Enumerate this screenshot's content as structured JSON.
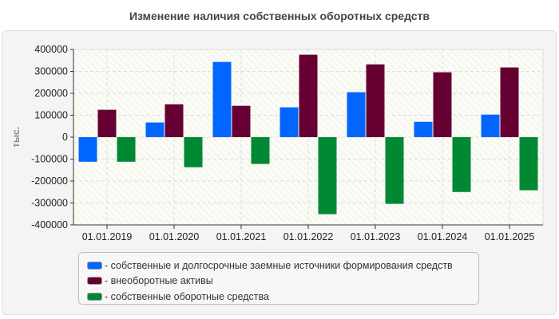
{
  "chart_data": {
    "type": "bar",
    "title": "Изменение наличия собственных оборотных средств",
    "ylabel": "тыс.",
    "xlabel": "",
    "ylim": [
      -400000,
      400000
    ],
    "yticks": [
      "400000",
      "300000",
      "200000",
      "100000",
      "0",
      "-100000",
      "-200000",
      "-300000",
      "-400000"
    ],
    "grid": true,
    "legend_position": "bottom",
    "categories": [
      "01.01.2019",
      "01.01.2020",
      "01.01.2021",
      "01.01.2022",
      "01.01.2023",
      "01.01.2024",
      "01.01.2025"
    ],
    "series": [
      {
        "name": "- собственные и долгосрочные заемные источники формирования средств",
        "color": "#0066ff",
        "values": [
          -112000,
          67000,
          343000,
          136000,
          205000,
          70000,
          103000
        ]
      },
      {
        "name": "- внеоборотные активы",
        "color": "#660033",
        "values": [
          125000,
          150000,
          143000,
          376000,
          332000,
          296000,
          318000
        ]
      },
      {
        "name": "- собственные оборотные средства",
        "color": "#008833",
        "values": [
          -112000,
          -137000,
          -122000,
          -351000,
          -304000,
          -250000,
          -242000
        ]
      }
    ]
  }
}
